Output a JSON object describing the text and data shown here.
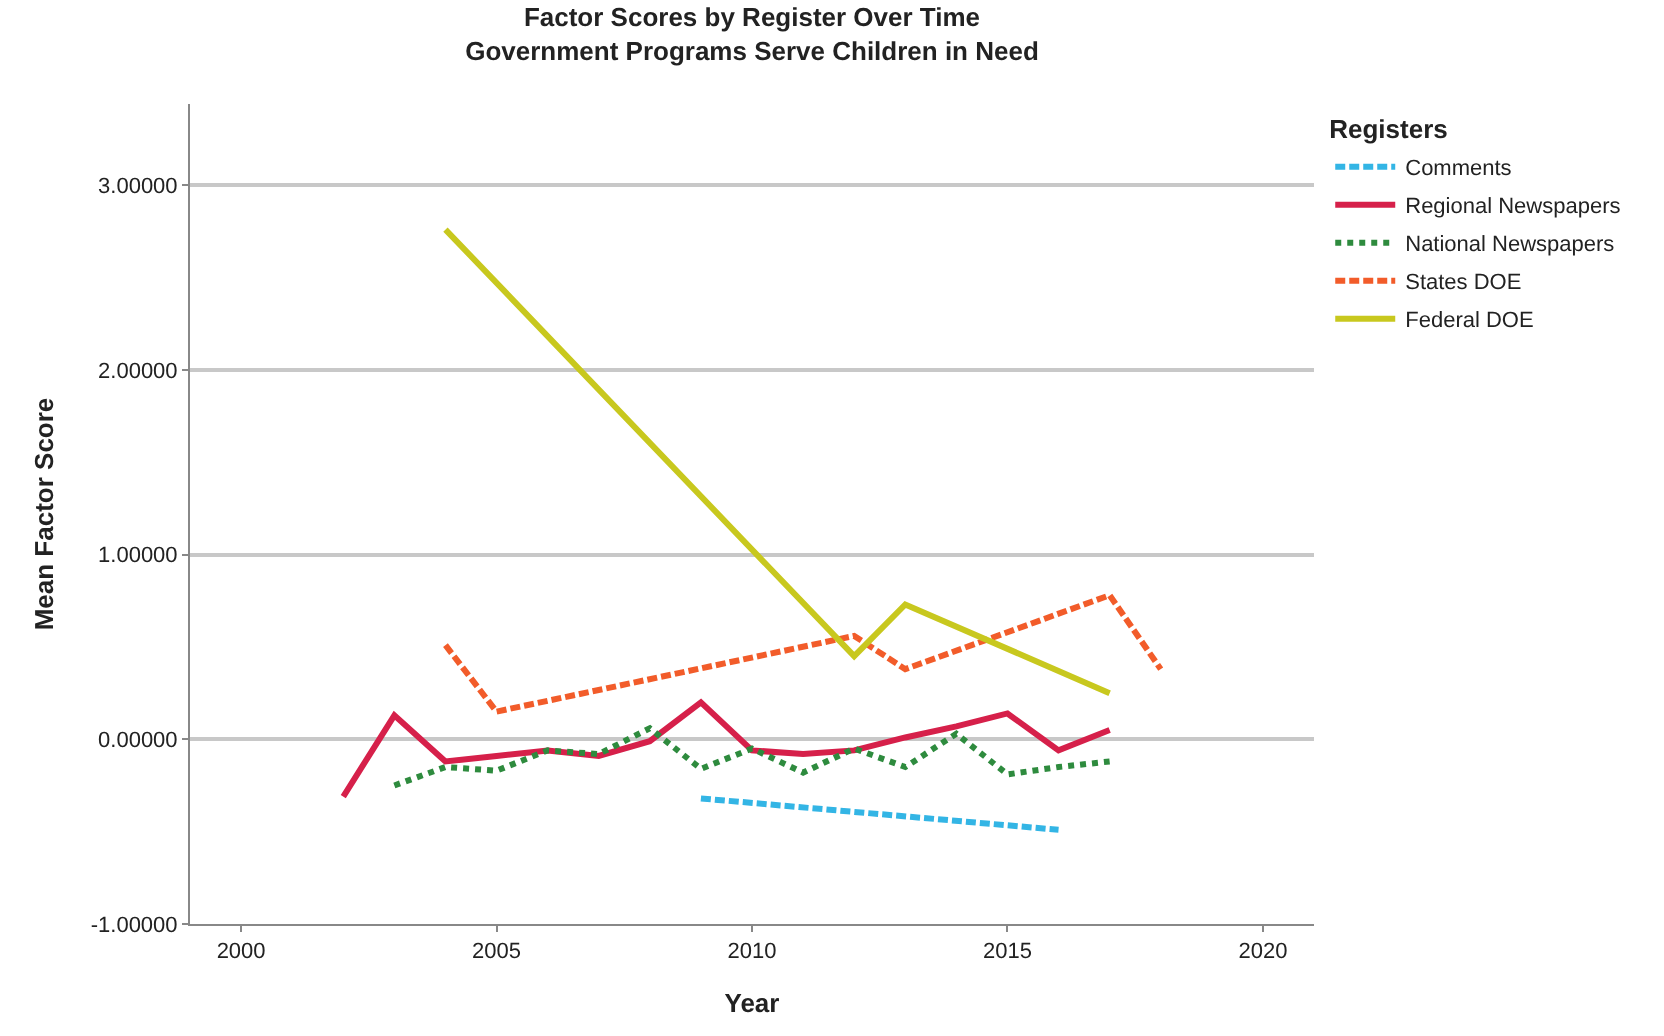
{
  "chart_data": {
    "type": "line",
    "title": "Factor Scores by Register Over Time\nGovernment Programs Serve Children in Need",
    "xlabel": "Year",
    "ylabel": "Mean Factor Score",
    "legend_title": "Registers",
    "legend": "top right",
    "grid": "y",
    "xlim": [
      1999,
      2021
    ],
    "xticks": [
      2000,
      2005,
      2010,
      2015,
      2020
    ],
    "ylim": [
      -1.0,
      3.44
    ],
    "yticks": [
      {
        "value": -1,
        "label": "-1.00000"
      },
      {
        "value": 0,
        "label": "0.00000"
      },
      {
        "value": 1,
        "label": "1.00000"
      },
      {
        "value": 2,
        "label": "2.00000"
      },
      {
        "value": 3,
        "label": "3.00000"
      }
    ],
    "series": [
      {
        "name": "Comments",
        "color": "#33b5e5",
        "line_style": "dashed",
        "x": [
          2009,
          2016
        ],
        "values": [
          -0.32,
          -0.49
        ]
      },
      {
        "name": "Regional Newspapers",
        "color": "#d6204a",
        "line_style": "solid",
        "x": [
          2002,
          2003,
          2004,
          2005,
          2006,
          2007,
          2008,
          2009,
          2010,
          2011,
          2012,
          2013,
          2014,
          2015,
          2016,
          2017
        ],
        "values": [
          -0.31,
          0.13,
          -0.12,
          -0.09,
          -0.06,
          -0.09,
          -0.01,
          0.2,
          -0.06,
          -0.08,
          -0.06,
          0.01,
          0.07,
          0.14,
          -0.06,
          0.05
        ]
      },
      {
        "name": "National Newspapers",
        "color": "#2e8b3e",
        "line_style": "dotted",
        "x": [
          2003,
          2004,
          2005,
          2006,
          2007,
          2008,
          2009,
          2010,
          2011,
          2012,
          2013,
          2014,
          2015,
          2016,
          2017
        ],
        "values": [
          -0.25,
          -0.15,
          -0.17,
          -0.06,
          -0.08,
          0.06,
          -0.16,
          -0.05,
          -0.18,
          -0.05,
          -0.15,
          0.03,
          -0.19,
          -0.15,
          -0.12
        ]
      },
      {
        "name": "States DOE",
        "color": "#f25c2a",
        "line_style": "dashed",
        "x": [
          2004,
          2005,
          2012,
          2013,
          2017,
          2018
        ],
        "values": [
          0.51,
          0.15,
          0.56,
          0.38,
          0.78,
          0.38
        ]
      },
      {
        "name": "Federal DOE",
        "color": "#c8c81e",
        "line_style": "solid",
        "x": [
          2004,
          2012,
          2013,
          2017
        ],
        "values": [
          2.76,
          0.45,
          0.73,
          0.25
        ]
      }
    ]
  }
}
